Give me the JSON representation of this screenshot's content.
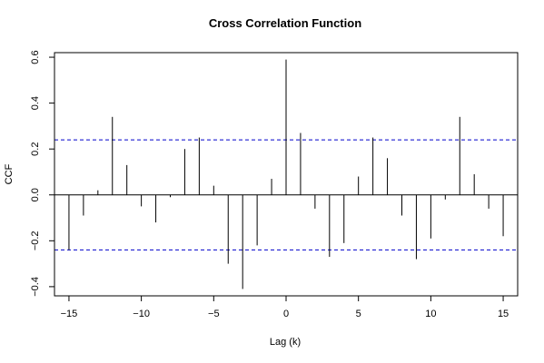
{
  "chart_data": {
    "type": "bar",
    "title": "Cross Correlation Function",
    "xlabel": "Lag (k)",
    "ylabel": "CCF",
    "xlim": [
      -16,
      16
    ],
    "ylim": [
      -0.44,
      0.62
    ],
    "x_ticks": [
      -15,
      -10,
      -5,
      0,
      5,
      10,
      15
    ],
    "x_tick_labels": [
      "−15",
      "−10",
      "−5",
      "0",
      "5",
      "10",
      "15"
    ],
    "y_ticks": [
      -0.4,
      -0.2,
      0.0,
      0.2,
      0.4,
      0.6
    ],
    "y_tick_labels": [
      "−0.4",
      "−0.2",
      "0.0",
      "0.2",
      "0.4",
      "0.6"
    ],
    "lags": [
      -15,
      -14,
      -13,
      -12,
      -11,
      -10,
      -9,
      -8,
      -7,
      -6,
      -5,
      -4,
      -3,
      -2,
      -1,
      0,
      1,
      2,
      3,
      4,
      5,
      6,
      7,
      8,
      9,
      10,
      11,
      12,
      13,
      14,
      15
    ],
    "values": [
      -0.24,
      -0.09,
      0.02,
      0.34,
      0.13,
      -0.05,
      -0.12,
      -0.01,
      0.2,
      0.25,
      0.04,
      -0.3,
      -0.41,
      -0.22,
      0.07,
      0.59,
      0.27,
      -0.06,
      -0.27,
      -0.21,
      0.08,
      0.25,
      0.16,
      -0.09,
      -0.28,
      -0.19,
      -0.02,
      0.34,
      0.09,
      -0.06,
      -0.18
    ],
    "confidence_bounds": [
      0.24,
      -0.24
    ],
    "colors": {
      "bars": "#000000",
      "bounds": "#0000cc",
      "zero_line": "#000000"
    }
  }
}
